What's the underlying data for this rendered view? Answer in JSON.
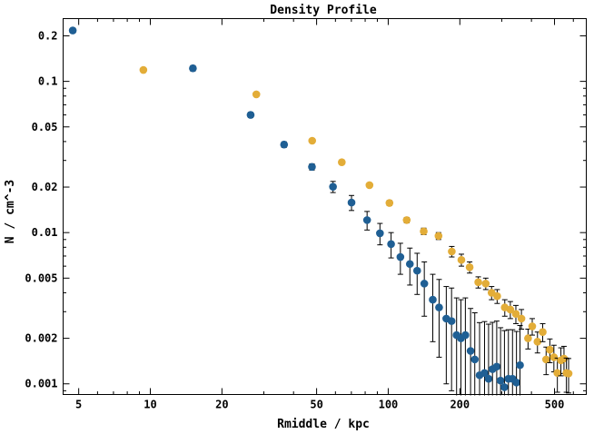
{
  "chart_data": {
    "type": "scatter",
    "title": "Density Profile",
    "xlabel": "Rmiddle / kpc",
    "ylabel": "N / cm^-3",
    "xscale": "log",
    "yscale": "log",
    "xlim": [
      4.3,
      680
    ],
    "ylim": [
      0.00085,
      0.26
    ],
    "grid": false,
    "x_ticks": [
      {
        "value": 5,
        "label": "5"
      },
      {
        "value": 10,
        "label": "10"
      },
      {
        "value": 20,
        "label": "20"
      },
      {
        "value": 50,
        "label": "50"
      },
      {
        "value": 100,
        "label": "100"
      },
      {
        "value": 200,
        "label": "200"
      },
      {
        "value": 500,
        "label": "500"
      }
    ],
    "y_ticks": [
      {
        "value": 0.2,
        "label": "0.2"
      },
      {
        "value": 0.1,
        "label": "0.1"
      },
      {
        "value": 0.05,
        "label": "0.05"
      },
      {
        "value": 0.02,
        "label": "0.02"
      },
      {
        "value": 0.01,
        "label": "0.01"
      },
      {
        "value": 0.005,
        "label": "0.005"
      },
      {
        "value": 0.002,
        "label": "0.002"
      },
      {
        "value": 0.001,
        "label": "0.001"
      }
    ],
    "series": [
      {
        "color": "#1f5f94",
        "points": [
          {
            "x": 4.72,
            "y": 0.217,
            "err": 0.008
          },
          {
            "x": 15.1,
            "y": 0.122,
            "err": 0.005
          },
          {
            "x": 26.4,
            "y": 0.06,
            "err": 0.0024
          },
          {
            "x": 36.5,
            "y": 0.0382,
            "err": 0.0016
          },
          {
            "x": 47.8,
            "y": 0.0272,
            "err": 0.0013
          },
          {
            "x": 58.6,
            "y": 0.0201,
            "err": 0.0017
          },
          {
            "x": 70.1,
            "y": 0.0158,
            "err": 0.0018
          },
          {
            "x": 81.5,
            "y": 0.0121,
            "err": 0.0017
          },
          {
            "x": 92.3,
            "y": 0.0099,
            "err": 0.0016
          },
          {
            "x": 102.8,
            "y": 0.0084,
            "err": 0.0016
          },
          {
            "x": 112.5,
            "y": 0.0069,
            "err": 0.0016
          },
          {
            "x": 123.3,
            "y": 0.0062,
            "err": 0.0017
          },
          {
            "x": 132.3,
            "y": 0.0056,
            "err": 0.0017
          },
          {
            "x": 141.8,
            "y": 0.0046,
            "err": 0.0018
          },
          {
            "x": 153.9,
            "y": 0.0036,
            "err": 0.0017
          },
          {
            "x": 163.6,
            "y": 0.0032,
            "err": 0.0017
          },
          {
            "x": 175.4,
            "y": 0.0027,
            "err": 0.0017
          },
          {
            "x": 184.6,
            "y": 0.0026,
            "err": 0.0017
          },
          {
            "x": 193.8,
            "y": 0.0021,
            "err": 0.0016
          },
          {
            "x": 202.1,
            "y": 0.002,
            "err": 0.0016
          },
          {
            "x": 211.0,
            "y": 0.0021,
            "err": 0.0016
          },
          {
            "x": 221.9,
            "y": 0.00165,
            "err": 0.0015
          },
          {
            "x": 231.1,
            "y": 0.00145,
            "err": 0.0015
          },
          {
            "x": 242.1,
            "y": 0.00114,
            "err": 0.0014
          },
          {
            "x": 254.0,
            "y": 0.00118,
            "err": 0.0014
          },
          {
            "x": 264.1,
            "y": 0.00108,
            "err": 0.0014
          },
          {
            "x": 274.3,
            "y": 0.00125,
            "err": 0.0013
          },
          {
            "x": 285.8,
            "y": 0.0013,
            "err": 0.0013
          },
          {
            "x": 296.6,
            "y": 0.00105,
            "err": 0.0013
          },
          {
            "x": 308.0,
            "y": 0.00095,
            "err": 0.0013
          },
          {
            "x": 320.0,
            "y": 0.00108,
            "err": 0.0012
          },
          {
            "x": 333.0,
            "y": 0.00108,
            "err": 0.0012
          },
          {
            "x": 346.0,
            "y": 0.00102,
            "err": 0.0012
          },
          {
            "x": 358.0,
            "y": 0.00133,
            "err": 0.0011
          }
        ]
      },
      {
        "color": "#e3ad38",
        "points": [
          {
            "x": 9.35,
            "y": 0.119,
            "err": 0.0
          },
          {
            "x": 27.9,
            "y": 0.082,
            "err": 0.0025
          },
          {
            "x": 47.9,
            "y": 0.0405,
            "err": 0.0012
          },
          {
            "x": 63.8,
            "y": 0.0292,
            "err": 0.0009
          },
          {
            "x": 83.4,
            "y": 0.0206,
            "err": 0.0007
          },
          {
            "x": 101.2,
            "y": 0.0157,
            "err": 0.0006
          },
          {
            "x": 119.6,
            "y": 0.0121,
            "err": 0.0005
          },
          {
            "x": 141.0,
            "y": 0.0102,
            "err": 0.0005
          },
          {
            "x": 162.7,
            "y": 0.0095,
            "err": 0.0005
          },
          {
            "x": 185.0,
            "y": 0.0075,
            "err": 0.0006
          },
          {
            "x": 203.0,
            "y": 0.0066,
            "err": 0.0006
          },
          {
            "x": 219.9,
            "y": 0.0059,
            "err": 0.0005
          },
          {
            "x": 239.0,
            "y": 0.0047,
            "err": 0.0004
          },
          {
            "x": 257.0,
            "y": 0.0046,
            "err": 0.0004
          },
          {
            "x": 272.0,
            "y": 0.004,
            "err": 0.0004
          },
          {
            "x": 287.0,
            "y": 0.0038,
            "err": 0.0004
          },
          {
            "x": 309.0,
            "y": 0.0032,
            "err": 0.0004
          },
          {
            "x": 326.0,
            "y": 0.0031,
            "err": 0.0004
          },
          {
            "x": 344.0,
            "y": 0.0029,
            "err": 0.0004
          },
          {
            "x": 363.0,
            "y": 0.0027,
            "err": 0.0004
          },
          {
            "x": 387.0,
            "y": 0.002,
            "err": 0.0003
          },
          {
            "x": 403.0,
            "y": 0.0024,
            "err": 0.0003
          },
          {
            "x": 424.0,
            "y": 0.0019,
            "err": 0.0003
          },
          {
            "x": 446.0,
            "y": 0.0022,
            "err": 0.0003
          },
          {
            "x": 461.0,
            "y": 0.00145,
            "err": 0.0003
          },
          {
            "x": 478.0,
            "y": 0.00168,
            "err": 0.0003
          },
          {
            "x": 497.0,
            "y": 0.0015,
            "err": 0.0003
          },
          {
            "x": 514.0,
            "y": 0.00118,
            "err": 0.0003
          },
          {
            "x": 532.0,
            "y": 0.00143,
            "err": 0.0003
          },
          {
            "x": 548.0,
            "y": 0.00147,
            "err": 0.0003
          },
          {
            "x": 561.0,
            "y": 0.00118,
            "err": 0.0003
          },
          {
            "x": 573.0,
            "y": 0.00117,
            "err": 0.0003
          }
        ]
      }
    ]
  }
}
